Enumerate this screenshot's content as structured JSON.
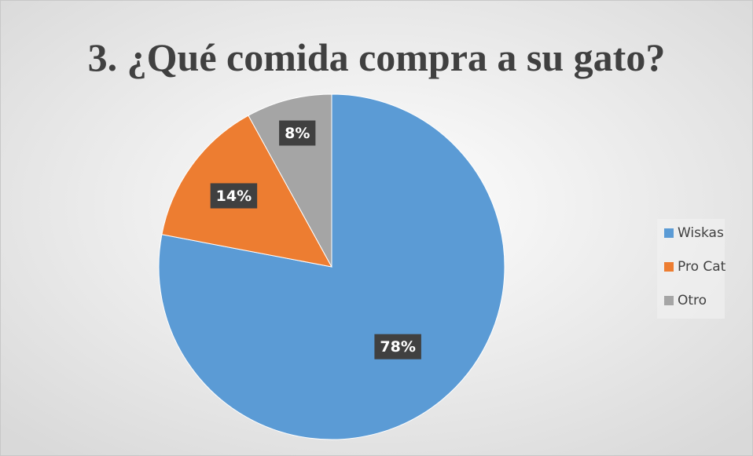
{
  "chart_data": {
    "type": "pie",
    "title": "3. ¿Qué comida compra a su gato?",
    "categories": [
      "Wiskas",
      "Pro Cat",
      "Otro"
    ],
    "values": [
      78,
      14,
      8
    ],
    "value_labels": [
      "78%",
      "14%",
      "8%"
    ],
    "colors": [
      "#5b9bd5",
      "#ed7d31",
      "#a5a5a5"
    ],
    "legend": "right"
  }
}
